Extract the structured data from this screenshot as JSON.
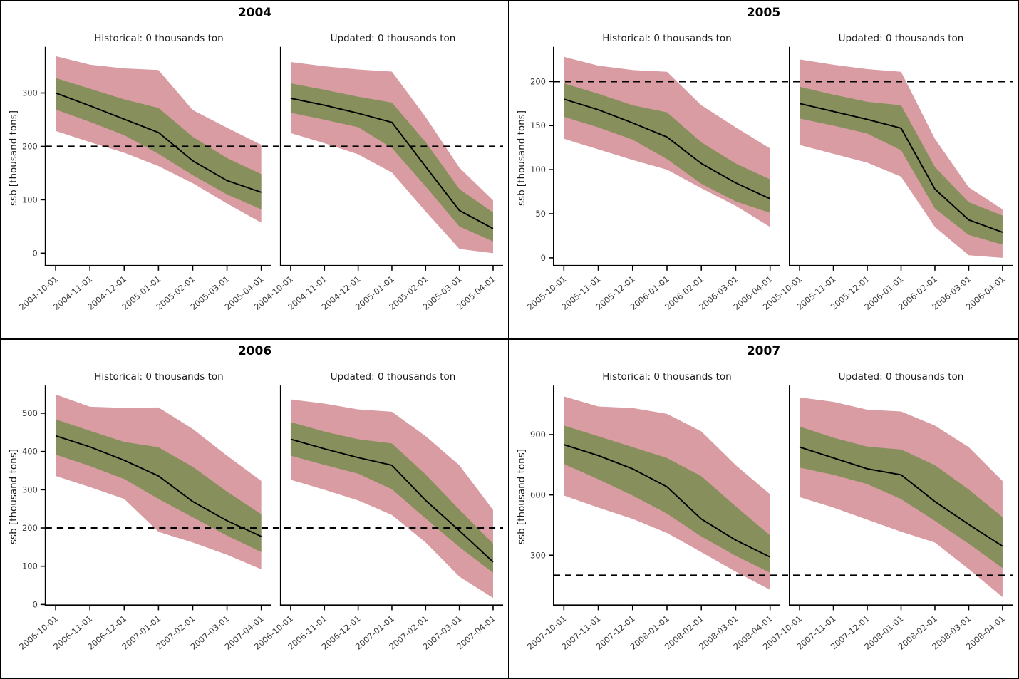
{
  "figure": {
    "ylabel": "ssb [thousand tons]",
    "reference_line_value": 200,
    "colors": {
      "outer_band": "#D89CA2",
      "inner_band": "#87905C",
      "median_line": "#000000",
      "reference_line": "#000000",
      "tick_text": "#3a3a3a",
      "axis": "#000000"
    }
  },
  "chart_data": [
    {
      "type": "line",
      "year": "2004",
      "ylim": [
        -22,
        381
      ],
      "yticks": [
        0,
        100,
        200,
        300
      ],
      "grid": false,
      "x": [
        "2004-10-01",
        "2004-11-01",
        "2004-12-01",
        "2005-01-01",
        "2005-02-01",
        "2005-03-01",
        "2005-04-01"
      ],
      "subplots": [
        {
          "title": "Historical: 0 thousands ton",
          "median": [
            300,
            276,
            251,
            226,
            173,
            136,
            114
          ],
          "inner_upper": [
            328,
            308,
            288,
            272,
            218,
            178,
            148
          ],
          "inner_lower": [
            269,
            246,
            221,
            186,
            146,
            110,
            82
          ],
          "outer_upper": [
            369,
            353,
            346,
            343,
            268,
            235,
            203
          ],
          "outer_lower": [
            229,
            208,
            188,
            163,
            131,
            93,
            57
          ]
        },
        {
          "title": "Updated: 0 thousands ton",
          "median": [
            290,
            277,
            262,
            245,
            162,
            80,
            46
          ],
          "inner_upper": [
            318,
            306,
            293,
            282,
            208,
            120,
            76
          ],
          "inner_lower": [
            263,
            250,
            236,
            197,
            125,
            50,
            22
          ],
          "outer_upper": [
            358,
            350,
            344,
            340,
            255,
            160,
            99
          ],
          "outer_lower": [
            225,
            206,
            185,
            151,
            78,
            8,
            0
          ]
        }
      ]
    },
    {
      "type": "line",
      "year": "2005",
      "ylim": [
        -8,
        236
      ],
      "yticks": [
        0,
        50,
        100,
        150,
        200
      ],
      "grid": false,
      "x": [
        "2005-10-01",
        "2005-11-01",
        "2005-12-01",
        "2006-01-01",
        "2006-02-01",
        "2006-03-01",
        "2006-04-01"
      ],
      "subplots": [
        {
          "title": "Historical: 0 thousands ton",
          "median": [
            180,
            168,
            153,
            137,
            107,
            85,
            67
          ],
          "inner_upper": [
            198,
            186,
            173,
            165,
            131,
            107,
            89
          ],
          "inner_lower": [
            160,
            148,
            134,
            112,
            84,
            64,
            51
          ],
          "outer_upper": [
            228,
            218,
            213,
            211,
            173,
            148,
            124
          ],
          "outer_lower": [
            135,
            123,
            111,
            100,
            79,
            59,
            35
          ]
        },
        {
          "title": "Updated: 0 thousands ton",
          "median": [
            175,
            166,
            157,
            147,
            78,
            43,
            29
          ],
          "inner_upper": [
            194,
            185,
            177,
            173,
            103,
            63,
            48
          ],
          "inner_lower": [
            158,
            150,
            141,
            122,
            56,
            26,
            15
          ],
          "outer_upper": [
            225,
            219,
            214,
            211,
            135,
            80,
            55
          ],
          "outer_lower": [
            128,
            118,
            108,
            92,
            35,
            3,
            0
          ]
        }
      ]
    },
    {
      "type": "line",
      "year": "2006",
      "ylim": [
        0,
        565
      ],
      "yticks": [
        0,
        100,
        200,
        300,
        400,
        500
      ],
      "grid": false,
      "x": [
        "2006-10-01",
        "2006-11-01",
        "2006-12-01",
        "2007-01-01",
        "2007-02-01",
        "2007-03-01",
        "2007-04-01"
      ],
      "subplots": [
        {
          "title": "Historical: 0 thousands ton",
          "median": [
            441,
            412,
            377,
            336,
            269,
            219,
            178
          ],
          "inner_upper": [
            484,
            454,
            425,
            411,
            360,
            295,
            236
          ],
          "inner_lower": [
            392,
            362,
            328,
            276,
            228,
            180,
            137
          ],
          "outer_upper": [
            549,
            517,
            514,
            515,
            459,
            389,
            323
          ],
          "outer_lower": [
            336,
            307,
            276,
            190,
            162,
            130,
            92
          ]
        },
        {
          "title": "Updated: 0 thousands ton",
          "median": [
            432,
            407,
            384,
            364,
            272,
            193,
            111
          ],
          "inner_upper": [
            477,
            452,
            432,
            421,
            340,
            248,
            159
          ],
          "inner_lower": [
            389,
            365,
            342,
            301,
            225,
            150,
            83
          ],
          "outer_upper": [
            536,
            525,
            510,
            504,
            440,
            364,
            247
          ],
          "outer_lower": [
            326,
            300,
            272,
            234,
            162,
            73,
            17
          ]
        }
      ]
    },
    {
      "type": "line",
      "year": "2007",
      "ylim": [
        55,
        1130
      ],
      "yticks": [
        300,
        600,
        900
      ],
      "grid": false,
      "x": [
        "2007-10-01",
        "2007-11-01",
        "2007-12-01",
        "2008-01-01",
        "2008-02-01",
        "2008-03-01",
        "2008-04-01"
      ],
      "subplots": [
        {
          "title": "Historical: 0 thousands ton",
          "median": [
            850,
            796,
            730,
            640,
            480,
            375,
            291
          ],
          "inner_upper": [
            945,
            892,
            838,
            784,
            693,
            543,
            399
          ],
          "inner_lower": [
            754,
            678,
            597,
            507,
            393,
            297,
            213
          ],
          "outer_upper": [
            1090,
            1040,
            1032,
            1003,
            916,
            748,
            603
          ],
          "outer_lower": [
            597,
            537,
            481,
            411,
            315,
            218,
            128
          ]
        },
        {
          "title": "Updated: 0 thousands ton",
          "median": [
            838,
            784,
            730,
            700,
            567,
            453,
            345
          ],
          "inner_upper": [
            940,
            885,
            840,
            826,
            748,
            627,
            489
          ],
          "inner_lower": [
            736,
            700,
            654,
            579,
            471,
            357,
            236
          ],
          "outer_upper": [
            1085,
            1063,
            1024,
            1015,
            945,
            838,
            669
          ],
          "outer_lower": [
            589,
            537,
            477,
            417,
            363,
            231,
            92
          ]
        }
      ]
    }
  ]
}
